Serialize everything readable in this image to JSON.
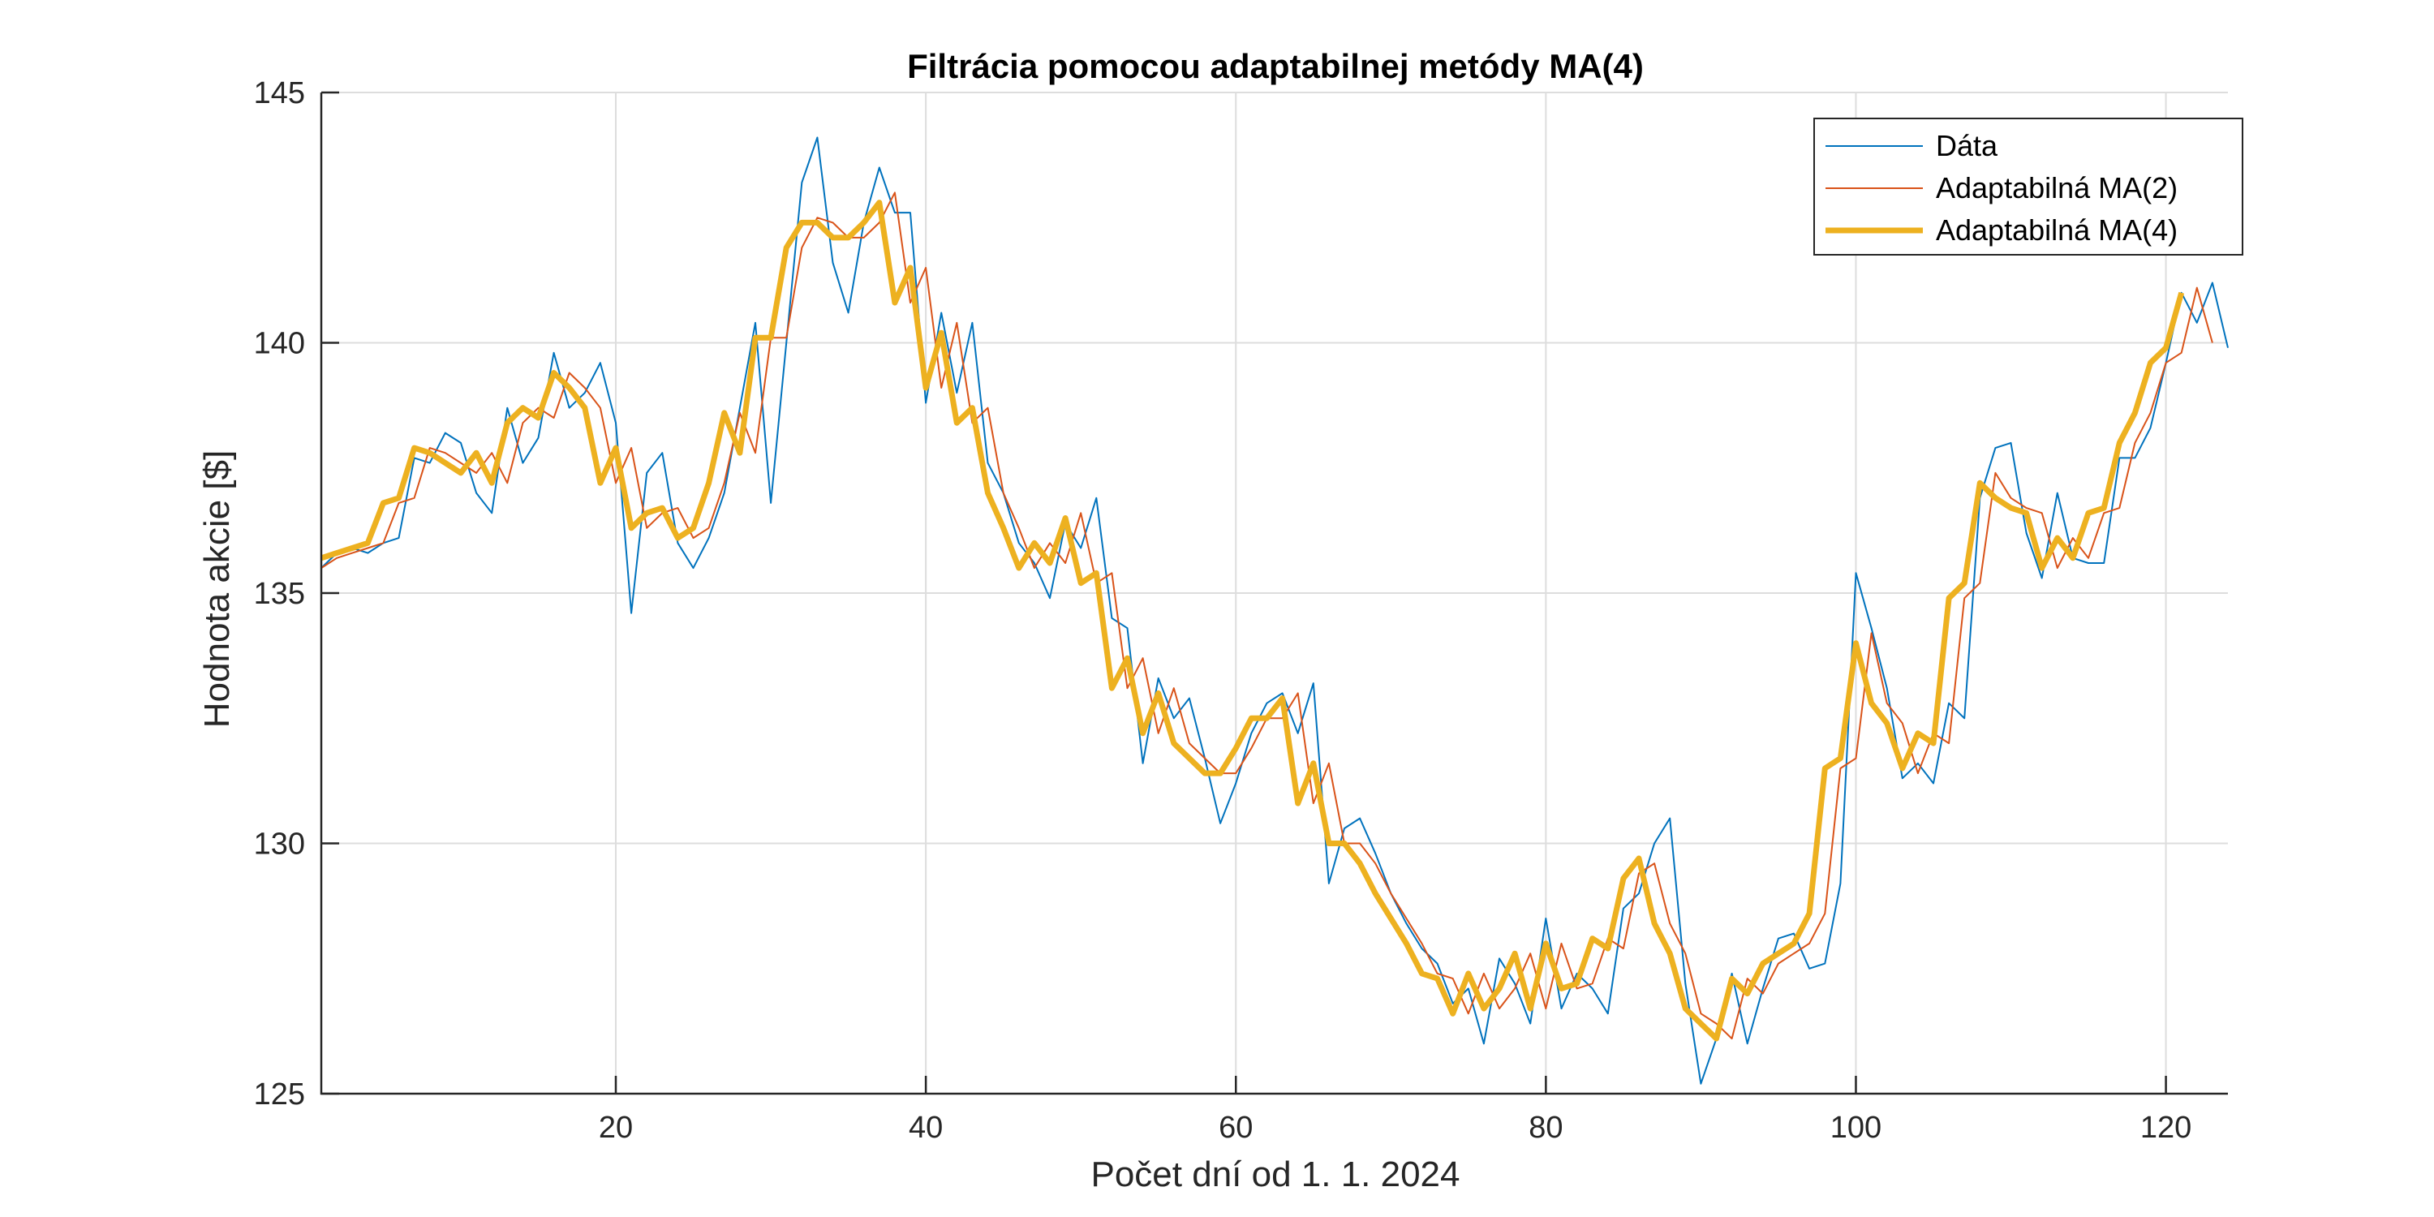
{
  "chart_data": {
    "type": "line",
    "title": "Filtrácia pomocou adaptabilnej metódy MA(4)",
    "xlabel": "Počet dní od 1. 1. 2024",
    "ylabel": "Hodnota akcie [$]",
    "xlim": [
      1,
      124
    ],
    "ylim": [
      125,
      145
    ],
    "xticks": [
      20,
      40,
      60,
      80,
      100,
      120
    ],
    "yticks": [
      125,
      130,
      135,
      140,
      145
    ],
    "grid": true,
    "legend_position": "top-right",
    "series": [
      {
        "name": "Dáta",
        "color": "#0072BD",
        "width": 2,
        "values": [
          135.5,
          135.8,
          135.9,
          135.8,
          136.0,
          136.1,
          137.7,
          137.6,
          138.2,
          138.0,
          137.0,
          136.6,
          138.7,
          137.6,
          138.1,
          139.8,
          138.7,
          139.0,
          139.6,
          138.4,
          134.6,
          137.4,
          137.8,
          136.0,
          135.5,
          136.1,
          137.0,
          138.7,
          140.4,
          136.8,
          140.0,
          143.2,
          144.1,
          141.6,
          140.6,
          142.4,
          143.5,
          142.6,
          142.6,
          138.8,
          140.6,
          139.0,
          140.4,
          137.6,
          137.0,
          136.0,
          135.6,
          134.9,
          136.4,
          135.9,
          136.9,
          134.5,
          134.3,
          131.6,
          133.3,
          132.5,
          132.9,
          131.7,
          130.4,
          131.2,
          132.2,
          132.8,
          133.0,
          132.2,
          133.2,
          129.2,
          130.3,
          130.5,
          129.8,
          129.0,
          128.4,
          127.9,
          127.6,
          126.8,
          127.1,
          126.0,
          127.7,
          127.2,
          126.4,
          128.5,
          126.7,
          127.4,
          127.1,
          126.6,
          128.7,
          129.0,
          130.0,
          130.5,
          127.2,
          125.2,
          126.1,
          127.4,
          126.0,
          127.1,
          128.1,
          128.2,
          127.5,
          127.6,
          129.2,
          135.4,
          134.3,
          133.1,
          131.3,
          131.6,
          131.2,
          132.8,
          132.5,
          136.9,
          137.9,
          138.0,
          136.2,
          135.3,
          137.0,
          135.7,
          135.6,
          135.6,
          137.7,
          137.7,
          138.3,
          139.6,
          141.0,
          140.4,
          141.2,
          139.9
        ]
      },
      {
        "name": "Adaptabilná MA(2)",
        "color": "#D95319",
        "width": 2,
        "values": [
          135.5,
          135.7,
          135.8,
          135.9,
          136.0,
          136.8,
          136.9,
          137.9,
          137.8,
          137.6,
          137.4,
          137.8,
          137.2,
          138.4,
          138.7,
          138.5,
          139.4,
          139.1,
          138.7,
          137.2,
          137.9,
          136.3,
          136.6,
          136.7,
          136.1,
          136.3,
          137.2,
          138.6,
          137.8,
          140.1,
          140.1,
          141.9,
          142.5,
          142.4,
          142.1,
          142.1,
          142.4,
          143.0,
          140.8,
          141.5,
          139.1,
          140.4,
          138.4,
          138.7,
          137.0,
          136.3,
          135.5,
          136.0,
          135.6,
          136.6,
          135.2,
          135.4,
          133.1,
          133.7,
          132.2,
          133.1,
          132.0,
          131.7,
          131.4,
          131.4,
          131.9,
          132.5,
          132.5,
          133.0,
          130.8,
          131.6,
          130.0,
          130.0,
          129.6,
          129.0,
          128.5,
          128.0,
          127.4,
          127.3,
          126.6,
          127.4,
          126.7,
          127.1,
          127.8,
          126.7,
          128.0,
          127.1,
          127.2,
          128.1,
          127.9,
          129.4,
          129.6,
          128.4,
          127.8,
          126.6,
          126.4,
          126.1,
          127.3,
          127.0,
          127.6,
          127.8,
          128.0,
          128.6,
          131.5,
          131.7,
          134.2,
          132.8,
          132.4,
          131.4,
          132.2,
          132.0,
          134.9,
          135.2,
          137.4,
          136.9,
          136.7,
          136.6,
          135.5,
          136.1,
          135.7,
          136.6,
          136.7,
          138.0,
          138.6,
          139.6,
          139.8,
          141.1,
          140.0
        ]
      },
      {
        "name": "Adaptabilná MA(4)",
        "color": "#EDB120",
        "width": 7,
        "values": [
          135.7,
          135.8,
          135.9,
          136.0,
          136.8,
          136.9,
          137.9,
          137.8,
          137.6,
          137.4,
          137.8,
          137.2,
          138.4,
          138.7,
          138.5,
          139.4,
          139.1,
          138.7,
          137.2,
          137.9,
          136.3,
          136.6,
          136.7,
          136.1,
          136.3,
          137.2,
          138.6,
          137.8,
          140.1,
          140.1,
          141.9,
          142.4,
          142.4,
          142.1,
          142.1,
          142.4,
          142.8,
          140.8,
          141.5,
          139.1,
          140.2,
          138.4,
          138.7,
          137.0,
          136.3,
          135.5,
          136.0,
          135.6,
          136.5,
          135.2,
          135.4,
          133.1,
          133.7,
          132.2,
          133.0,
          132.0,
          131.7,
          131.4,
          131.4,
          131.9,
          132.5,
          132.5,
          132.9,
          130.8,
          131.6,
          130.0,
          130.0,
          129.6,
          129.0,
          128.5,
          128.0,
          127.4,
          127.3,
          126.6,
          127.4,
          126.7,
          127.1,
          127.8,
          126.7,
          128.0,
          127.1,
          127.2,
          128.1,
          127.9,
          129.3,
          129.7,
          128.4,
          127.8,
          126.7,
          126.4,
          126.1,
          127.3,
          127.0,
          127.6,
          127.8,
          128.0,
          128.6,
          131.5,
          131.7,
          134.0,
          132.8,
          132.4,
          131.5,
          132.2,
          132.0,
          134.9,
          135.2,
          137.2,
          136.9,
          136.7,
          136.6,
          135.5,
          136.1,
          135.7,
          136.6,
          136.7,
          138.0,
          138.6,
          139.6,
          139.9,
          141.0
        ]
      }
    ]
  }
}
